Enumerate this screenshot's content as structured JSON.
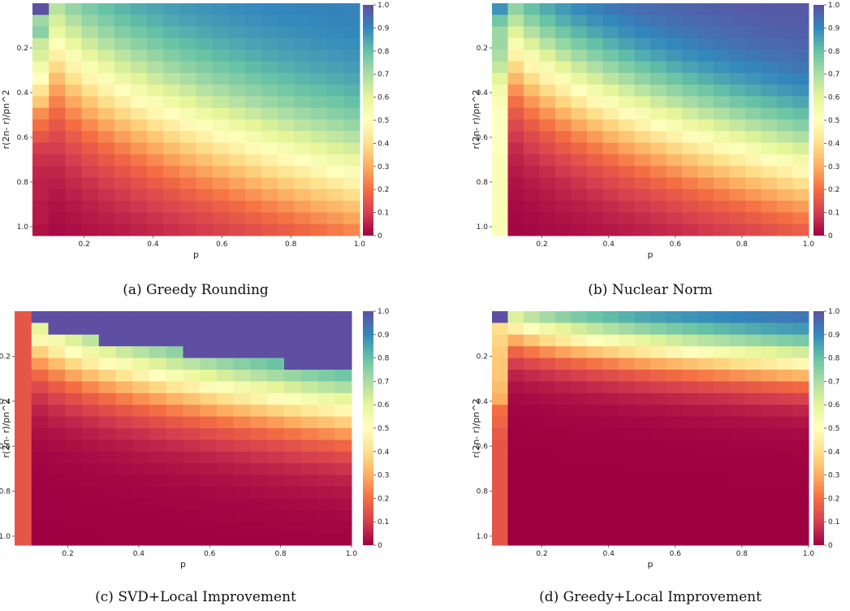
{
  "colorbar": {
    "min": 0,
    "max": 1,
    "tick_labels": [
      "0",
      "0.1",
      "0.2",
      "0.3",
      "0.4",
      "0.5",
      "0.6",
      "0.7",
      "0.8",
      "0.9",
      "1.0"
    ],
    "colormap": "Spectral",
    "colors": [
      "#9e0142",
      "#d53e4f",
      "#f46d43",
      "#fdae61",
      "#fee08b",
      "#ffffbf",
      "#e6f598",
      "#abdda4",
      "#66c2a5",
      "#3288bd",
      "#5e4fa2"
    ]
  },
  "chart_data": [
    {
      "type": "heatmap",
      "caption_letter": "(a)",
      "caption_text": "Greedy Rounding",
      "xlabel": "p",
      "ylabel": "r(2n- r)/pn^2",
      "grid": "20x20",
      "x_tick_labels": [
        "0.2",
        "0.4",
        "0.6",
        "0.8",
        "1.0"
      ],
      "y_tick_labels": [
        "0.2",
        "0.4",
        "0.6",
        "0.8",
        "1.0"
      ],
      "value_field": {
        "a": 0.78,
        "b": 2.3,
        "edge": [
          1.0,
          0.72,
          0.75,
          0.65,
          0.62,
          0.55,
          0.5,
          0.42,
          0.35,
          0.25,
          0.2,
          0.15,
          0.1,
          0.08,
          0.06,
          0.05,
          0.05,
          0.04,
          0.04,
          0.03
        ],
        "first_col": 0.07
      }
    },
    {
      "type": "heatmap",
      "caption_letter": "(b)",
      "caption_text": "Nuclear Norm",
      "xlabel": "p",
      "ylabel": "r(2n- r)/pn^2",
      "grid": "20x20",
      "x_tick_labels": [
        "0.2",
        "0.4",
        "0.6",
        "0.8",
        "1.0"
      ],
      "y_tick_labels": [
        "0.2",
        "0.4",
        "0.6",
        "0.8",
        "1.0"
      ],
      "value_field": {
        "a": 0.72,
        "b": 2.0,
        "edge": [
          0.88,
          0.78,
          0.72,
          0.72,
          0.7,
          0.66,
          0.6,
          0.55,
          0.52,
          0.5,
          0.5,
          0.5,
          0.5,
          0.52,
          0.52,
          0.52,
          0.52,
          0.52,
          0.52,
          0.52
        ],
        "first_col": 0.0
      }
    },
    {
      "type": "heatmap",
      "caption_letter": "(c)",
      "caption_text": "SVD+Local Improvement",
      "xlabel": "p",
      "ylabel": "r(2n- r)/pn^2",
      "grid": "20x20",
      "x_tick_labels": [
        "0.2",
        "0.4",
        "0.6",
        "0.8",
        "1.0"
      ],
      "y_tick_labels": [
        "0.2",
        "0.4",
        "0.6",
        "0.8",
        "1.0"
      ],
      "value_field": {
        "a": 0.42,
        "b": 1.3,
        "edge": [
          0.15,
          0.15,
          0.15,
          0.15,
          0.15,
          0.15,
          0.15,
          0.15,
          0.15,
          0.15,
          0.15,
          0.15,
          0.15,
          0.15,
          0.15,
          0.15,
          0.15,
          0.15,
          0.15,
          0.15
        ],
        "first_col": 0.0,
        "saturate_below": 0.9
      }
    },
    {
      "type": "heatmap",
      "caption_letter": "(d)",
      "caption_text": "Greedy+Local Improvement",
      "xlabel": "p",
      "ylabel": "r(2n- r)/pn^2",
      "grid": "20x20",
      "x_tick_labels": [
        "0.2",
        "0.4",
        "0.6",
        "0.8",
        "1.0"
      ],
      "y_tick_labels": [
        "0.2",
        "0.4",
        "0.6",
        "0.8",
        "1.0"
      ],
      "value_field": {
        "a": 0.22,
        "b": 0.9,
        "edge": [
          1.0,
          0.4,
          0.38,
          0.36,
          0.35,
          0.35,
          0.33,
          0.3,
          0.2,
          0.18,
          0.16,
          0.15,
          0.15,
          0.15,
          0.15,
          0.15,
          0.15,
          0.15,
          0.15,
          0.15
        ],
        "first_col": 0.0
      }
    }
  ]
}
